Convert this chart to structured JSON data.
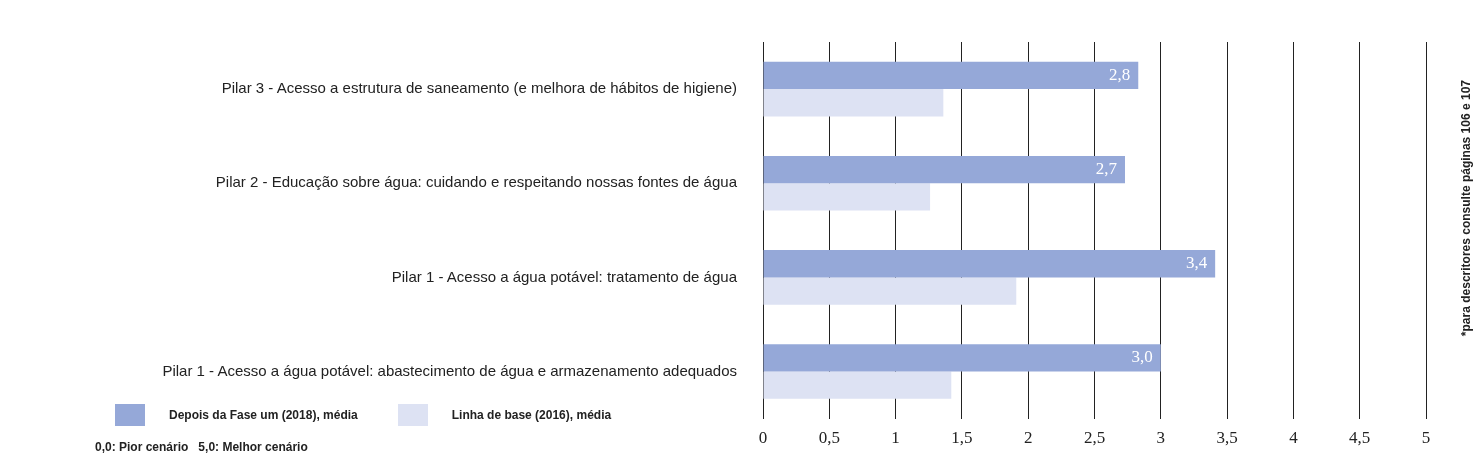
{
  "chart_data": {
    "type": "bar",
    "orientation": "horizontal",
    "categories": [
      "Pilar 3 - Acesso a estrutura de saneamento (e melhora de hábitos de higiene)",
      "Pilar 2 - Educação sobre água: cuidando e respeitando nossas fontes de água",
      "Pilar 1 - Acesso a água potável: tratamento de água",
      "Pilar 1 - Acesso a água potável: abastecimento de água e armazenamento adequados"
    ],
    "series": [
      {
        "name": "Depois da Fase um (2018), média",
        "color": "#95a8d8",
        "values": [
          2.83,
          2.73,
          3.41,
          3.0
        ],
        "value_labels": [
          "2,8",
          "2,7",
          "3,4",
          "3,0"
        ]
      },
      {
        "name": "Linha de base (2016), média",
        "color": "#dde2f3",
        "values": [
          1.36,
          1.26,
          1.91,
          1.42
        ]
      }
    ],
    "xlim": [
      0,
      5
    ],
    "xticks": [
      0,
      {
        "value": 0.5,
        "label": "0,5"
      },
      1,
      {
        "value": 1.5,
        "label": "1,5"
      },
      2,
      {
        "value": 2.5,
        "label": "2,5"
      },
      3,
      {
        "value": 3.5,
        "label": "3,5"
      },
      4,
      {
        "value": 4.5,
        "label": "4,5"
      },
      5
    ],
    "grid": "x",
    "legend": "bottom left",
    "annotations": [
      "0,0: Pior cenário   5,0: Melhor cenário",
      "*para descritores consulte páginas 106 e 107"
    ]
  }
}
